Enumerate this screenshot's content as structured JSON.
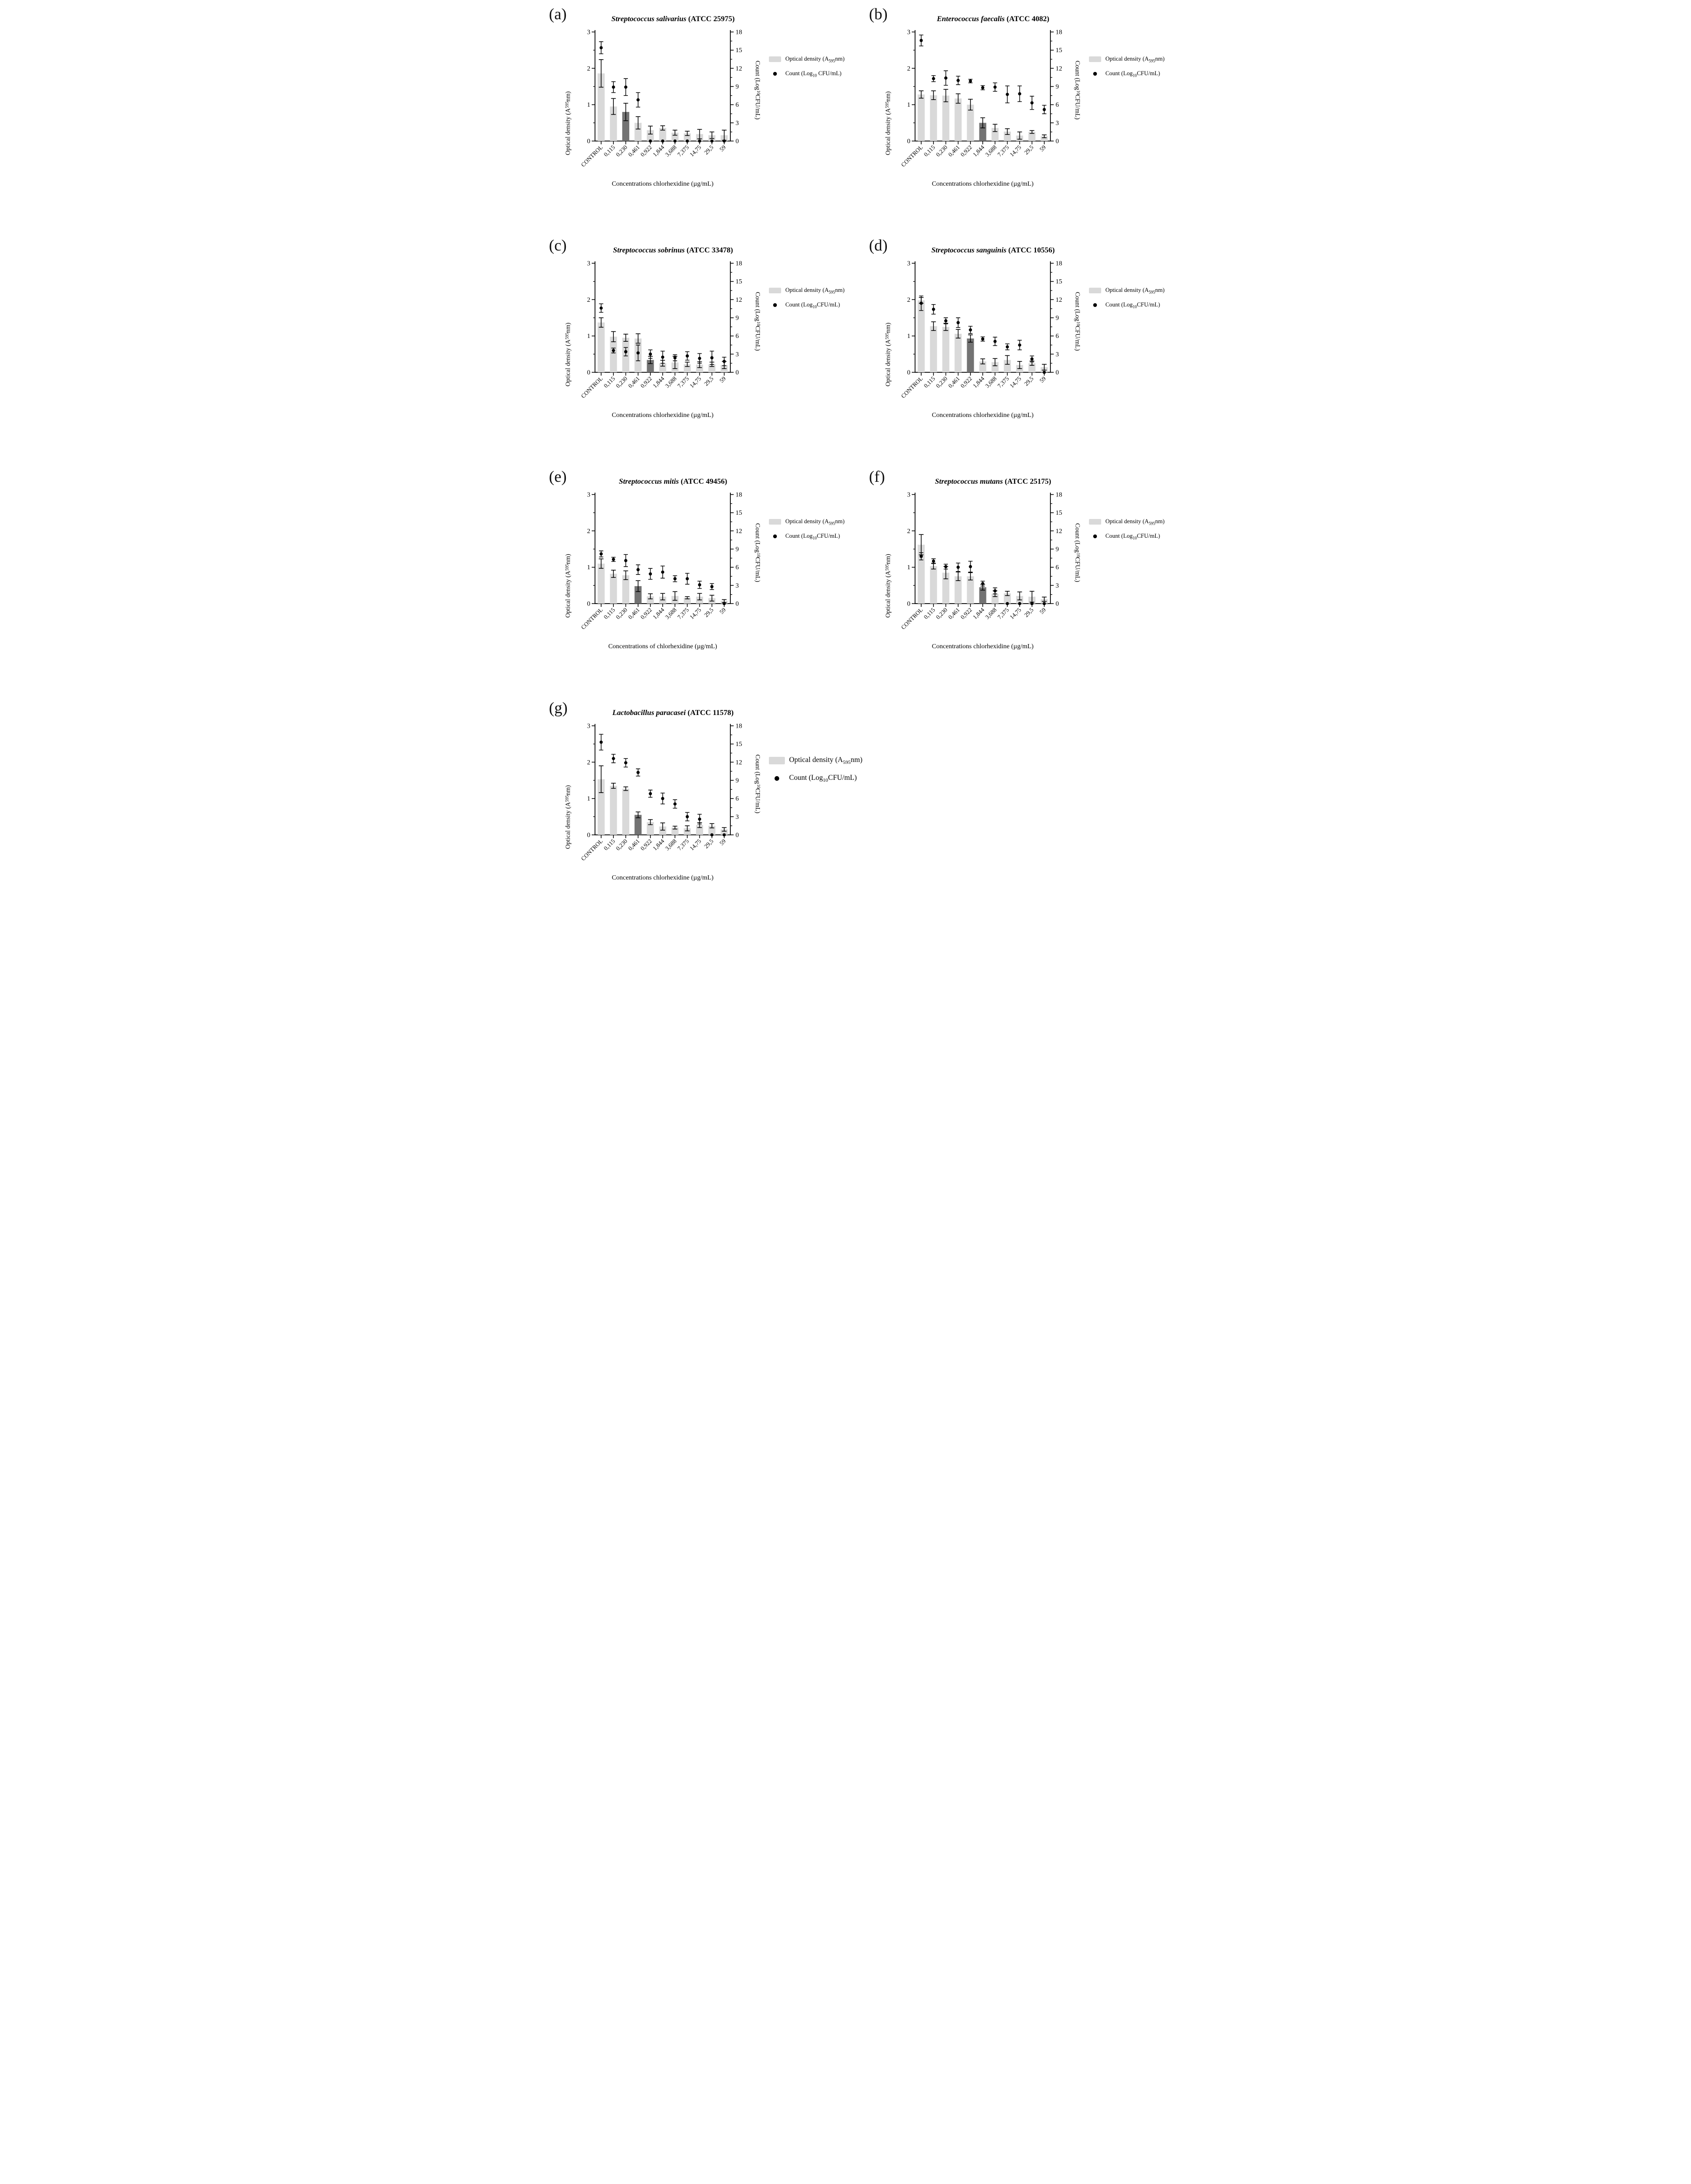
{
  "colors": {
    "bar_light": "#d9d9d9",
    "bar_dark": "#737373",
    "dot": "#000000",
    "axis": "#000000",
    "error": "#000000"
  },
  "categories": [
    "CONTROL",
    "0,115",
    "0,230",
    "0,461",
    "0,922",
    "1,844",
    "3,688",
    "7,375",
    "14,75",
    "29,5",
    "59"
  ],
  "charts": [
    {
      "panel_letter": "(a)",
      "title_species": "Streptococcus salivarius",
      "title_code": "(ATCC 25975)",
      "x_label": "Concentrations chlorhexidine (µg/mL)",
      "y_left": {
        "pre": "Optical density (A",
        "sub": "595",
        "post": " nm)",
        "max": 3,
        "ticks": [
          0,
          1,
          2,
          3
        ]
      },
      "y_right": {
        "pre": "Count (Log",
        "sub": "10",
        "post": " CFU/mL)",
        "max": 18,
        "ticks": [
          0,
          3,
          6,
          9,
          12,
          15,
          18
        ]
      },
      "chart_data": {
        "type": "bar+scatter",
        "dark_index": 2,
        "bar_values": [
          1.86,
          0.95,
          0.8,
          0.5,
          0.3,
          0.36,
          0.23,
          0.21,
          0.19,
          0.16,
          0.16
        ],
        "bar_errors": [
          0.38,
          0.22,
          0.24,
          0.17,
          0.11,
          0.06,
          0.07,
          0.06,
          0.13,
          0.09,
          0.14
        ],
        "dot_values": [
          15.4,
          8.9,
          8.9,
          6.8,
          0,
          0,
          0,
          0,
          0,
          0,
          0
        ],
        "dot_errors": [
          1.0,
          0.9,
          1.4,
          1.2,
          0,
          0,
          0,
          0,
          0,
          0,
          0
        ]
      },
      "legend": [
        {
          "marker": "bar",
          "pre": "Optical density (A",
          "sub": "595",
          "post": "nm)"
        },
        {
          "marker": "dot",
          "pre": "Count (Log",
          "sub": "10",
          "post": " CFU/mL)"
        }
      ]
    },
    {
      "panel_letter": "(b)",
      "title_species": "Enterococcus faecalis",
      "title_code": "(ATCC 4082)",
      "x_label": "Concentrations chlorhexidine (µg/mL)",
      "y_left": {
        "pre": "Optical density (A",
        "sub": "595",
        "post": " nm)",
        "max": 3,
        "ticks": [
          0,
          1,
          2,
          3
        ]
      },
      "y_right": {
        "pre": "Count (Log",
        "sub": "10",
        "post": " CFU/mL)",
        "max": 18,
        "ticks": [
          0,
          3,
          6,
          9,
          12,
          15,
          18
        ]
      },
      "chart_data": {
        "type": "bar+scatter",
        "dark_index": 5,
        "bar_values": [
          1.28,
          1.26,
          1.25,
          1.17,
          1.0,
          0.5,
          0.36,
          0.26,
          0.15,
          0.25,
          0.13
        ],
        "bar_errors": [
          0.1,
          0.12,
          0.17,
          0.13,
          0.15,
          0.14,
          0.1,
          0.08,
          0.1,
          0.04,
          0.04
        ],
        "dot_values": [
          16.6,
          10.3,
          10.4,
          10.0,
          9.9,
          8.8,
          8.9,
          7.7,
          7.8,
          6.3,
          5.2
        ],
        "dot_errors": [
          0.9,
          0.5,
          1.2,
          0.7,
          0.3,
          0.35,
          0.7,
          1.4,
          1.3,
          1.1,
          0.7
        ]
      },
      "legend": [
        {
          "marker": "bar",
          "pre": "Optical density (A",
          "sub": "595",
          "post": "nm)"
        },
        {
          "marker": "dot",
          "pre": "Count (Log",
          "sub": "10",
          "post": "CFU/mL)"
        }
      ]
    },
    {
      "panel_letter": "(c)",
      "title_species": "Streptococcus sobrinus",
      "title_code": "(ATCC 33478)",
      "x_label": "Concentrations chlorhexidine (µg/mL)",
      "y_left": {
        "pre": "Optical density (A",
        "sub": "595",
        "post": " nm)",
        "max": 3,
        "ticks": [
          0,
          1,
          2,
          3
        ]
      },
      "y_right": {
        "pre": "Count (Log",
        "sub": "10",
        "post": " CFU/mL)",
        "max": 18,
        "ticks": [
          0,
          3,
          6,
          9,
          12,
          15,
          18
        ]
      },
      "chart_data": {
        "type": "bar+scatter",
        "dark_index": 4,
        "bar_values": [
          1.37,
          0.98,
          0.95,
          0.93,
          0.34,
          0.25,
          0.27,
          0.22,
          0.21,
          0.22,
          0.2
        ],
        "bar_errors": [
          0.13,
          0.14,
          0.1,
          0.13,
          0.1,
          0.08,
          0.17,
          0.06,
          0.08,
          0.06,
          0.1
        ],
        "dot_values": [
          10.6,
          3.6,
          3.4,
          3.2,
          3.0,
          2.5,
          2.4,
          2.7,
          2.3,
          2.4,
          1.8
        ],
        "dot_errors": [
          0.7,
          0.4,
          0.7,
          1.3,
          0.7,
          1.0,
          0.5,
          0.7,
          0.8,
          1.1,
          0.7
        ]
      },
      "legend": [
        {
          "marker": "bar",
          "pre": "Optical density (A",
          "sub": "595",
          "post": "nm)"
        },
        {
          "marker": "dot",
          "pre": "Count (Log",
          "sub": "10",
          "post": "CFU/mL)"
        }
      ]
    },
    {
      "panel_letter": "(d)",
      "title_species": "Streptococcus sanguinis",
      "title_code": "(ATCC 10556)",
      "x_label": "Concentrations chlorhexidine (µg/mL)",
      "y_left": {
        "pre": "Optical density (A",
        "sub": "595",
        "post": " nm)",
        "max": 3,
        "ticks": [
          0,
          1,
          2,
          3
        ]
      },
      "y_right": {
        "pre": "Count (Log",
        "sub": "10",
        "post": " CFU/mL)",
        "max": 18,
        "ticks": [
          0,
          3,
          6,
          9,
          12,
          15,
          18
        ]
      },
      "chart_data": {
        "type": "bar+scatter",
        "dark_index": 4,
        "bar_values": [
          1.98,
          1.27,
          1.25,
          1.06,
          0.93,
          0.3,
          0.28,
          0.34,
          0.2,
          0.25,
          0.14
        ],
        "bar_errors": [
          0.08,
          0.12,
          0.1,
          0.12,
          0.1,
          0.07,
          0.1,
          0.12,
          0.1,
          0.06,
          0.08
        ],
        "dot_values": [
          11.4,
          10.4,
          8.5,
          8.2,
          7.0,
          5.5,
          5.1,
          4.2,
          4.5,
          2.2,
          0
        ],
        "dot_errors": [
          1.2,
          0.8,
          0.5,
          0.8,
          0.6,
          0.35,
          0.7,
          0.5,
          0.8,
          0.5,
          0
        ]
      },
      "legend": [
        {
          "marker": "bar",
          "pre": "Optical density (A",
          "sub": "595",
          "post": "nm)"
        },
        {
          "marker": "dot",
          "pre": "Count (Log",
          "sub": "10",
          "post": "CFU/mL)"
        }
      ]
    },
    {
      "panel_letter": "(e)",
      "title_species": "Streptococcus mitis",
      "title_code": "(ATCC 49456)",
      "x_label": "Concentrations of chlorhexidine (µg/mL)",
      "y_left": {
        "pre": "Optical density (A",
        "sub": "595",
        "post": " nm)",
        "max": 3,
        "ticks": [
          0,
          1,
          2,
          3
        ]
      },
      "y_right": {
        "pre": "Count (Log",
        "sub": "10",
        "post": " CFU/mL)",
        "max": 18,
        "ticks": [
          0,
          3,
          6,
          9,
          12,
          15,
          18
        ]
      },
      "chart_data": {
        "type": "bar+scatter",
        "dark_index": 3,
        "bar_values": [
          1.1,
          0.82,
          0.78,
          0.48,
          0.2,
          0.19,
          0.21,
          0.16,
          0.19,
          0.15,
          0.07
        ],
        "bar_errors": [
          0.13,
          0.1,
          0.12,
          0.15,
          0.07,
          0.09,
          0.12,
          0.03,
          0.09,
          0.08,
          0.04
        ],
        "dot_values": [
          8.2,
          7.3,
          7.1,
          5.6,
          4.9,
          5.2,
          4.1,
          4.1,
          3.1,
          2.8,
          0
        ],
        "dot_errors": [
          0.5,
          0.35,
          1.0,
          0.8,
          0.9,
          1.0,
          0.5,
          0.9,
          0.6,
          0.5,
          0
        ]
      },
      "legend": [
        {
          "marker": "bar",
          "pre": "Optical density (A",
          "sub": "595",
          "post": "nm)"
        },
        {
          "marker": "dot",
          "pre": "Count (Log",
          "sub": "10",
          "post": "CFU/mL)"
        }
      ]
    },
    {
      "panel_letter": "(f)",
      "title_species": "Streptococcus mutans",
      "title_code": "(ATCC 25175)",
      "x_label": "Concentrations chlorhexidine (µg/mL)",
      "y_left": {
        "pre": "Optical density (A",
        "sub": "595",
        "post": " nm)",
        "max": 3,
        "ticks": [
          0,
          1,
          2,
          3
        ]
      },
      "y_right": {
        "pre": "Count (Log",
        "sub": "10",
        "post": " CFU/mL)",
        "max": 18,
        "ticks": [
          0,
          3,
          6,
          9,
          12,
          15,
          18
        ]
      },
      "chart_data": {
        "type": "bar+scatter",
        "dark_index": 5,
        "bar_values": [
          1.62,
          1.03,
          0.85,
          0.75,
          0.75,
          0.45,
          0.27,
          0.28,
          0.21,
          0.19,
          0.12
        ],
        "bar_errors": [
          0.28,
          0.08,
          0.17,
          0.12,
          0.1,
          0.08,
          0.08,
          0.06,
          0.11,
          0.15,
          0.06
        ],
        "dot_values": [
          7.8,
          7.0,
          6.1,
          6.0,
          6.1,
          3.3,
          2.1,
          0,
          0,
          0,
          0
        ],
        "dot_errors": [
          0.6,
          0.4,
          0.4,
          0.7,
          0.9,
          0.4,
          0.5,
          0,
          0,
          0,
          0
        ]
      },
      "legend": [
        {
          "marker": "bar",
          "pre": "Optical density (A",
          "sub": "595",
          "post": "nm)"
        },
        {
          "marker": "dot",
          "pre": "Count (Log",
          "sub": "10",
          "post": "CFU/mL)"
        }
      ]
    },
    {
      "panel_letter": "(g)",
      "title_species": "Lactobacillus paracasei",
      "title_code": "(ATCC 11578)",
      "x_label": "Concentrations chlorhexidine (µg/mL)",
      "y_left": {
        "pre": "Optical density (A",
        "sub": "595",
        "post": " nm)",
        "max": 3,
        "ticks": [
          0,
          1,
          2,
          3
        ]
      },
      "y_right": {
        "pre": "Count (Log",
        "sub": "10",
        "post": " CFU/mL)",
        "max": 18,
        "ticks": [
          0,
          3,
          6,
          9,
          12,
          15,
          18
        ]
      },
      "chart_data": {
        "type": "bar+scatter",
        "dark_index": 3,
        "bar_values": [
          1.53,
          1.35,
          1.27,
          0.55,
          0.35,
          0.23,
          0.2,
          0.18,
          0.27,
          0.25,
          0.15
        ],
        "bar_errors": [
          0.37,
          0.07,
          0.05,
          0.08,
          0.07,
          0.1,
          0.04,
          0.07,
          0.07,
          0.06,
          0.05
        ],
        "dot_values": [
          15.3,
          12.6,
          11.9,
          10.3,
          6.8,
          6.0,
          5.1,
          3.0,
          2.6,
          0,
          0
        ],
        "dot_errors": [
          1.3,
          0.7,
          0.7,
          0.6,
          0.6,
          0.9,
          0.7,
          0.7,
          0.8,
          0,
          0
        ]
      },
      "legend": [
        {
          "marker": "bar",
          "pre": "Optical density (A",
          "sub": "595",
          "post": "nm)"
        },
        {
          "marker": "dot",
          "pre": "Count (Log",
          "sub": "10",
          "post": "CFU/mL)"
        }
      ]
    }
  ]
}
